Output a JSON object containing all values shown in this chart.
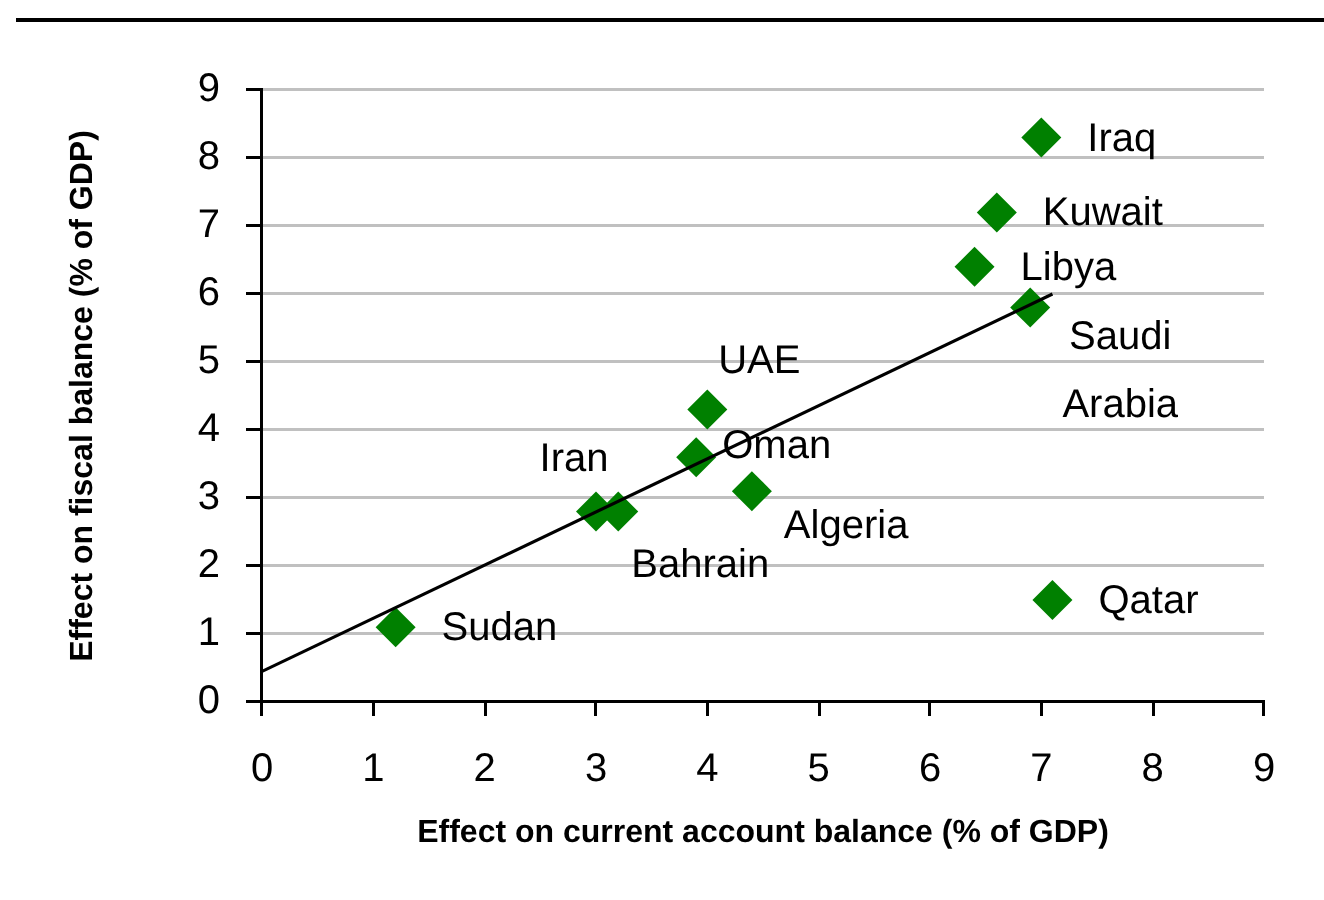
{
  "chart_data": {
    "type": "scatter",
    "xlabel": "Effect on current account balance (% of GDP)",
    "ylabel": "Effect on fiscal balance (% of GDP)",
    "series": [
      {
        "color": "#008000",
        "x": [
          7.0,
          6.6,
          6.4,
          6.9,
          4.0,
          3.9,
          4.4,
          3.0,
          3.2,
          1.2,
          7.1
        ],
        "values": [
          8.3,
          7.2,
          6.4,
          5.8,
          4.3,
          3.6,
          3.1,
          2.8,
          2.8,
          1.1,
          1.5
        ]
      },
      {
        "type": "line",
        "color": "#000000",
        "marker": "none",
        "x": [
          0,
          7.1
        ],
        "values": [
          0.45,
          6.0
        ]
      }
    ],
    "xlim": [
      0,
      9
    ],
    "xticks": [
      0,
      1,
      2,
      3,
      4,
      5,
      6,
      7,
      8,
      9
    ],
    "ylim": [
      0,
      9
    ],
    "yticks": [
      0,
      1,
      2,
      3,
      4,
      5,
      6,
      7,
      8,
      9
    ],
    "grid": "y",
    "marker": "diamond",
    "annotations": [
      {
        "text": "Iraq",
        "x": 7.0,
        "y": 8.3
      },
      {
        "text": "Kuwait",
        "x": 6.6,
        "y": 7.2
      },
      {
        "text": "Libya",
        "x": 6.4,
        "y": 6.4
      },
      {
        "text": "Saudi Arabia",
        "x": 6.9,
        "y": 5.8
      },
      {
        "text": "UAE",
        "x": 4.0,
        "y": 4.3
      },
      {
        "text": "Oman",
        "x": 3.9,
        "y": 3.6
      },
      {
        "text": "Algeria",
        "x": 4.4,
        "y": 3.1
      },
      {
        "text": "Iran",
        "x": 3.0,
        "y": 2.8
      },
      {
        "text": "Bahrain",
        "x": 3.2,
        "y": 2.8
      },
      {
        "text": "Sudan",
        "x": 1.2,
        "y": 1.1
      },
      {
        "text": "Qatar",
        "x": 7.1,
        "y": 1.5
      }
    ]
  }
}
